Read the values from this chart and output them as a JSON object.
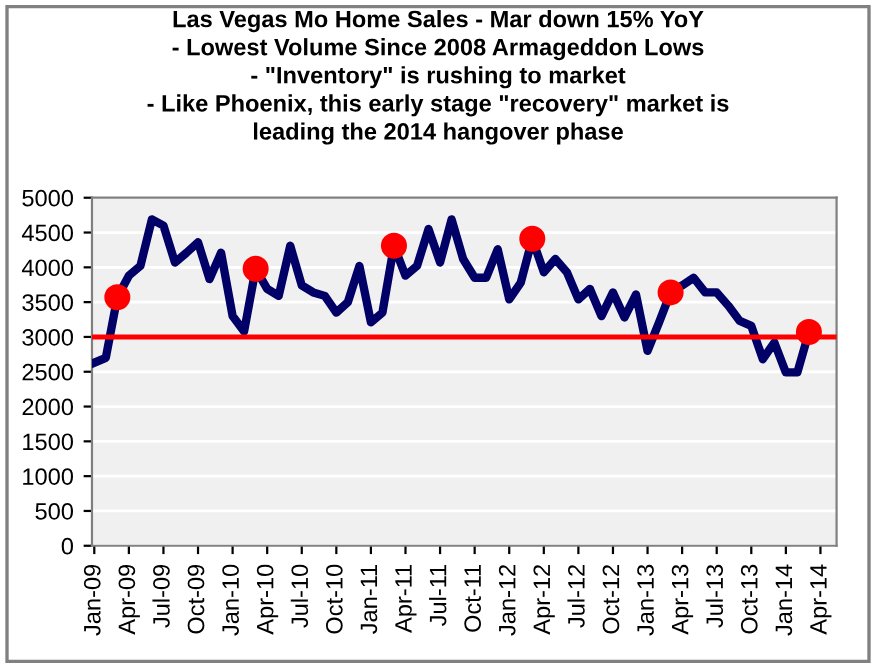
{
  "chart_data": {
    "type": "line",
    "title": "Las Vegas Mo Home Sales - Mar down 15% YoY\n- Lowest Volume Since 2008 Armageddon Lows\n- \"Inventory\" is rushing to market\n- Like Phoenix, this early stage \"recovery\" market is\nleading the 2014 hangover phase",
    "categories": [
      "Jan-09",
      null,
      null,
      "Apr-09",
      null,
      null,
      "Jul-09",
      null,
      null,
      "Oct-09",
      null,
      null,
      "Jan-10",
      null,
      null,
      "Apr-10",
      null,
      null,
      "Jul-10",
      null,
      null,
      "Oct-10",
      null,
      null,
      "Jan-11",
      null,
      null,
      "Apr-11",
      null,
      null,
      "Jul-11",
      null,
      null,
      "Oct-11",
      null,
      null,
      "Jan-12",
      null,
      null,
      "Apr-12",
      null,
      null,
      "Jul-12",
      null,
      null,
      "Oct-12",
      null,
      null,
      "Jan-13",
      null,
      null,
      "Apr-13",
      null,
      null,
      "Jul-13",
      null,
      null,
      "Oct-13",
      null,
      null,
      "Jan-14",
      null,
      null,
      "Apr-14"
    ],
    "series": [
      {
        "color": "#000066",
        "values": [
          2630,
          2700,
          3570,
          3880,
          4020,
          4690,
          4600,
          4070,
          4210,
          4360,
          3830,
          4210,
          3300,
          3080,
          3980,
          3690,
          3590,
          4310,
          3740,
          3640,
          3590,
          3350,
          3500,
          4020,
          3210,
          3350,
          4310,
          3880,
          4020,
          4550,
          4070,
          4690,
          4120,
          3850,
          3850,
          4260,
          3540,
          3780,
          4410,
          3930,
          4120,
          3930,
          3540,
          3690,
          3300,
          3640,
          3280,
          3610,
          2800,
          3210,
          3640,
          3740,
          3850,
          3640,
          3640,
          3450,
          3230,
          3160,
          2680,
          2920,
          2490,
          2490,
          3070,
          null
        ]
      },
      {
        "type": "scatter",
        "color": "#ff0000",
        "values": [
          null,
          null,
          3570,
          null,
          null,
          null,
          null,
          null,
          null,
          null,
          null,
          null,
          null,
          null,
          3980,
          null,
          null,
          null,
          null,
          null,
          null,
          null,
          null,
          null,
          null,
          null,
          4310,
          null,
          null,
          null,
          null,
          null,
          null,
          null,
          null,
          null,
          null,
          null,
          4410,
          null,
          null,
          null,
          null,
          null,
          null,
          null,
          null,
          null,
          null,
          null,
          3640,
          null,
          null,
          null,
          null,
          null,
          null,
          null,
          null,
          null,
          null,
          null,
          3070,
          null
        ]
      }
    ],
    "ylim": [
      0,
      5000
    ],
    "yticks": [
      0,
      500,
      1000,
      1500,
      2000,
      2500,
      3000,
      3500,
      4000,
      4500,
      5000
    ],
    "grid": "y",
    "ref_lines": [
      {
        "axis": "y",
        "value": 3000,
        "color": "#ff0000"
      }
    ]
  }
}
